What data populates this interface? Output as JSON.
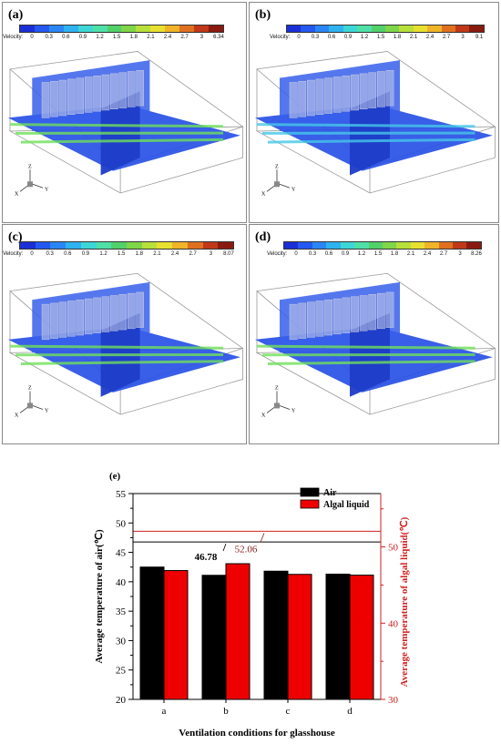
{
  "panels": [
    {
      "label": "(a)",
      "cbar_title": "Velocity:",
      "ticks": [
        "0",
        "0.3",
        "0.6",
        "0.9",
        "1.2",
        "1.5",
        "1.8",
        "2.1",
        "2.4",
        "2.7",
        "3",
        "6.34"
      ],
      "axes": {
        "z": "Z",
        "x": "X",
        "y": "Y"
      }
    },
    {
      "label": "(b)",
      "cbar_title": "Velocity:",
      "ticks": [
        "0",
        "0.3",
        "0.6",
        "0.9",
        "1.2",
        "1.5",
        "1.8",
        "2.1",
        "2.4",
        "2.7",
        "3",
        "9.1"
      ],
      "axes": {
        "z": "Z",
        "x": "X",
        "y": "Y"
      }
    },
    {
      "label": "(c)",
      "cbar_title": "Velocity:",
      "ticks": [
        "0",
        "0.3",
        "0.6",
        "0.9",
        "1.2",
        "1.5",
        "1.8",
        "2.1",
        "2.4",
        "2.7",
        "3",
        "8.07"
      ],
      "axes": {
        "z": "Z",
        "x": "X",
        "y": "Y"
      }
    },
    {
      "label": "(d)",
      "cbar_title": "Velocity:",
      "ticks": [
        "0",
        "0.3",
        "0.6",
        "0.9",
        "1.2",
        "1.5",
        "1.8",
        "2.1",
        "2.4",
        "2.7",
        "3",
        "8.26"
      ],
      "axes": {
        "z": "Z",
        "x": "X",
        "y": "Y"
      }
    }
  ],
  "colormap": [
    "#1b2fd6",
    "#2458f0",
    "#2b86f5",
    "#2fb2f0",
    "#3dd6d6",
    "#4fe0a8",
    "#52d06a",
    "#7ed648",
    "#b8e03a",
    "#e8e030",
    "#f0b428",
    "#e07020",
    "#c03818",
    "#8a1a10"
  ],
  "chart_data": {
    "type": "bar",
    "panel_label": "(e)",
    "categories": [
      "a",
      "b",
      "c",
      "d"
    ],
    "series": [
      {
        "name": "Air",
        "axis": "left",
        "color": "#000000",
        "values": [
          42.5,
          41.1,
          41.8,
          41.3
        ]
      },
      {
        "name": "Algal liquid",
        "axis": "right",
        "color": "#ee0000",
        "values": [
          46.9,
          47.8,
          46.4,
          46.3
        ]
      }
    ],
    "xlabel": "Ventilation conditions for glasshouse",
    "ylabel": "Average temperature of air(℃)",
    "y2label": "Average temperature of algal liquid(℃)",
    "ylim": [
      20,
      55
    ],
    "y2lim": [
      30,
      57
    ],
    "yticks": [
      "20",
      "25",
      "30",
      "35",
      "40",
      "45",
      "50",
      "55"
    ],
    "y2ticks": [
      "30",
      "40",
      "50"
    ],
    "annotations": [
      {
        "text": "52.06",
        "axis": "right",
        "y": 52.06,
        "color": "#8b1a1a"
      },
      {
        "text": "46.78",
        "axis": "left",
        "y": 46.78,
        "color": "#000000"
      }
    ],
    "legend_position": "top-right"
  }
}
